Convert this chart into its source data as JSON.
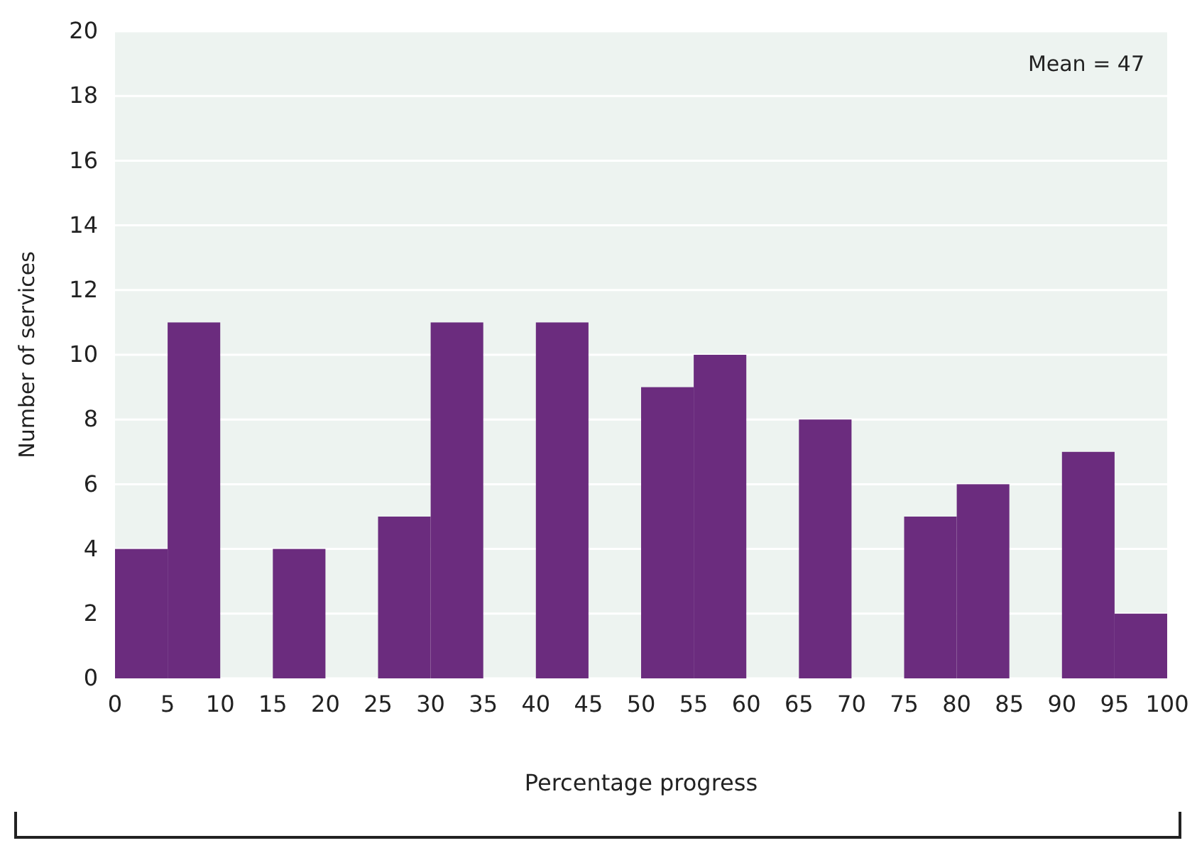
{
  "chart_data": {
    "type": "histogram",
    "xlabel": "Percentage progress",
    "ylabel": "Number of services",
    "bins": [
      0,
      5,
      10,
      15,
      20,
      25,
      30,
      35,
      40,
      45,
      50,
      55,
      60,
      65,
      70,
      75,
      80,
      85,
      90,
      95,
      100
    ],
    "values": [
      4,
      11,
      0,
      4,
      0,
      5,
      11,
      0,
      11,
      0,
      9,
      10,
      0,
      8,
      0,
      5,
      6,
      0,
      7,
      2
    ],
    "color": "#6b2c7e",
    "xlim": [
      0,
      100
    ],
    "xticks": [
      0,
      5,
      10,
      15,
      20,
      25,
      30,
      35,
      40,
      45,
      50,
      55,
      60,
      65,
      70,
      75,
      80,
      85,
      90,
      95,
      100
    ],
    "ylim": [
      0,
      20
    ],
    "yticks": [
      0,
      2,
      4,
      6,
      8,
      10,
      12,
      14,
      16,
      18,
      20
    ],
    "grid": "y",
    "annotations": [
      "Mean = 47"
    ]
  }
}
